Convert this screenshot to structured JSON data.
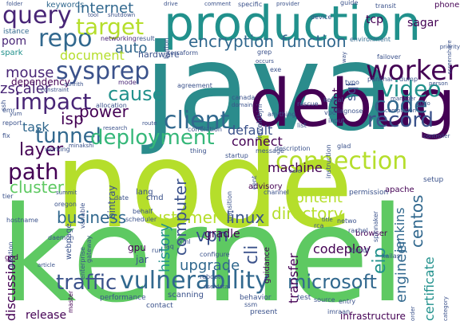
{
  "words": [
    {
      "text": "java",
      "color": "#2b8c8c"
    },
    {
      "text": "node",
      "color": "#b5de2b"
    },
    {
      "text": "kernel",
      "color": "#5ec962"
    },
    {
      "text": "debug",
      "color": "#440154"
    },
    {
      "text": "production",
      "color": "#21918c"
    },
    {
      "text": "vulnerability",
      "color": "#31688e"
    },
    {
      "text": "query",
      "color": "#482576"
    },
    {
      "text": "repo",
      "color": "#31688e"
    },
    {
      "text": "target",
      "color": "#b5de2b"
    },
    {
      "text": "sysprep",
      "color": "#3b528b"
    },
    {
      "text": "impact",
      "color": "#482576"
    },
    {
      "text": "tunnel",
      "color": "#31688e"
    },
    {
      "text": "path",
      "color": "#440154"
    },
    {
      "text": "layer",
      "color": "#440154"
    },
    {
      "text": "cluster",
      "color": "#5ec962"
    },
    {
      "text": "worker",
      "color": "#440154"
    },
    {
      "text": "video",
      "color": "#21918c"
    },
    {
      "text": "code",
      "color": "#31688e"
    },
    {
      "text": "record",
      "color": "#3b528b"
    },
    {
      "text": "connection",
      "color": "#b5de2b"
    },
    {
      "text": "deployment",
      "color": "#35b779"
    },
    {
      "text": "client",
      "color": "#31688e"
    },
    {
      "text": "cause",
      "color": "#21918c"
    },
    {
      "text": "power",
      "color": "#440154"
    },
    {
      "text": "traffic",
      "color": "#3b528b"
    },
    {
      "text": "microsoft",
      "color": "#31688e"
    },
    {
      "text": "customer",
      "color": "#b5de2b"
    },
    {
      "text": "business",
      "color": "#31688e"
    },
    {
      "text": "linux",
      "color": "#3b528b"
    },
    {
      "text": "directory",
      "color": "#b5de2b"
    },
    {
      "text": "function",
      "color": "#31688e"
    },
    {
      "text": "encryption",
      "color": "#31688e"
    },
    {
      "text": "internet",
      "color": "#31688e"
    },
    {
      "text": "auto",
      "color": "#31688e"
    },
    {
      "text": "mouse",
      "color": "#482576"
    },
    {
      "text": "zscaler",
      "color": "#482576"
    },
    {
      "text": "document",
      "color": "#b5de2b"
    },
    {
      "text": "dependency",
      "color": "#440154"
    },
    {
      "text": "task",
      "color": "#31688e"
    },
    {
      "text": "isp",
      "color": "#440154"
    },
    {
      "text": "content",
      "color": "#b5de2b"
    },
    {
      "text": "machine",
      "color": "#440154"
    },
    {
      "text": "default",
      "color": "#3b528b"
    },
    {
      "text": "connect",
      "color": "#440154"
    },
    {
      "text": "computer",
      "color": "#3b528b"
    },
    {
      "text": "history",
      "color": "#21918c"
    },
    {
      "text": "vpn",
      "color": "#3b528b"
    },
    {
      "text": "upgrade",
      "color": "#31688e"
    },
    {
      "text": "cli",
      "color": "#3b528b"
    },
    {
      "text": "transfer",
      "color": "#440154"
    },
    {
      "text": "codeploy",
      "color": "#440154"
    },
    {
      "text": "eip",
      "color": "#21918c"
    },
    {
      "text": "engineer",
      "color": "#31688e"
    },
    {
      "text": "centos",
      "color": "#31688e"
    },
    {
      "text": "jenkins",
      "color": "#31688e"
    },
    {
      "text": "certificate",
      "color": "#21918c"
    },
    {
      "text": "discussion",
      "color": "#440154"
    },
    {
      "text": "release",
      "color": "#440154"
    },
    {
      "text": "sql",
      "color": "#3b528b"
    },
    {
      "text": "dont",
      "color": "#440154"
    },
    {
      "text": "tcp",
      "color": "#440154"
    },
    {
      "text": "sagar",
      "color": "#440154"
    },
    {
      "text": "pom",
      "color": "#482576"
    },
    {
      "text": "spark",
      "color": "#21918c"
    },
    {
      "text": "hardware",
      "color": "#3b528b"
    },
    {
      "text": "keywords",
      "color": "#31688e"
    },
    {
      "text": "istance",
      "color": "#31688e"
    },
    {
      "text": "networking",
      "color": "#482576"
    },
    {
      "text": "result",
      "color": "#3b528b"
    },
    {
      "text": "terraform",
      "color": "#3b528b"
    },
    {
      "text": "environment",
      "color": "#31688e"
    },
    {
      "text": "phone",
      "color": "#440154"
    },
    {
      "text": "mode",
      "color": "#482576"
    },
    {
      "text": "allocation",
      "color": "#3b528b"
    },
    {
      "text": "gradle",
      "color": "#440154"
    },
    {
      "text": "gpu",
      "color": "#440154"
    },
    {
      "text": "jar",
      "color": "#3b528b"
    },
    {
      "text": "lang",
      "color": "#3b528b"
    },
    {
      "text": "cmd",
      "color": "#3b528b"
    },
    {
      "text": "webpage",
      "color": "#3b528b"
    },
    {
      "text": "bintray",
      "color": "#3b528b"
    },
    {
      "text": "guidance",
      "color": "#440154"
    },
    {
      "text": "browser",
      "color": "#440154"
    },
    {
      "text": "apache",
      "color": "#440154"
    },
    {
      "text": "permission",
      "color": "#3b528b"
    },
    {
      "text": "setup",
      "color": "#3b528b"
    },
    {
      "text": "infrastructure",
      "color": "#440154"
    },
    {
      "text": "kailas",
      "color": "#3b528b"
    },
    {
      "text": "master",
      "color": "#440154"
    },
    {
      "text": "performance",
      "color": "#3b528b"
    },
    {
      "text": "scanning",
      "color": "#3b528b"
    },
    {
      "text": "contact",
      "color": "#3b528b"
    },
    {
      "text": "present",
      "color": "#3b528b"
    },
    {
      "text": "behavior",
      "color": "#3b528b"
    },
    {
      "text": "test",
      "color": "#3b528b"
    },
    {
      "text": "imraan",
      "color": "#3b528b"
    },
    {
      "text": "god",
      "color": "#440154"
    },
    {
      "text": "hostname",
      "color": "#3b528b"
    },
    {
      "text": "oregon",
      "color": "#3b528b"
    },
    {
      "text": "daemon",
      "color": "#3b528b"
    },
    {
      "text": "summit",
      "color": "#3b528b"
    },
    {
      "text": "enterprise",
      "color": "#3b528b"
    },
    {
      "text": "run",
      "color": "#3b528b"
    },
    {
      "text": "faq",
      "color": "#3b528b"
    },
    {
      "text": "reboot",
      "color": "#3b528b"
    },
    {
      "text": "configure",
      "color": "#3b528b"
    },
    {
      "text": "xml",
      "color": "#3b528b"
    },
    {
      "text": "source",
      "color": "#3b528b"
    },
    {
      "text": "entry",
      "color": "#3b528b"
    },
    {
      "text": "bundl",
      "color": "#3b528b"
    },
    {
      "text": "netwo",
      "color": "#3b528b"
    },
    {
      "text": "spinnaker",
      "color": "#3b528b"
    },
    {
      "text": "rca",
      "color": "#3b528b"
    },
    {
      "text": "rachel",
      "color": "#3b528b"
    },
    {
      "text": "advisory",
      "color": "#440154"
    },
    {
      "text": "channel",
      "color": "#3b528b"
    },
    {
      "text": "transition",
      "color": "#3b528b"
    },
    {
      "text": "behalf",
      "color": "#3b528b"
    },
    {
      "text": "date",
      "color": "#3b528b"
    },
    {
      "text": "variable",
      "color": "#3b528b"
    },
    {
      "text": "gateway",
      "color": "#3b528b"
    },
    {
      "text": "scheduler",
      "color": "#3b528b"
    },
    {
      "text": "startup",
      "color": "#3b528b"
    },
    {
      "text": "message",
      "color": "#3b528b"
    },
    {
      "text": "description",
      "color": "#3b528b"
    },
    {
      "text": "thing",
      "color": "#3b528b"
    },
    {
      "text": "correlation",
      "color": "#3b528b"
    },
    {
      "text": "research",
      "color": "#3b528b"
    },
    {
      "text": "working",
      "color": "#3b528b"
    },
    {
      "text": "minakshi",
      "color": "#3b528b"
    },
    {
      "text": "report",
      "color": "#3b528b"
    },
    {
      "text": "yum",
      "color": "#3b528b"
    },
    {
      "text": "emr",
      "color": "#3b528b"
    },
    {
      "text": "ssh",
      "color": "#3b528b"
    },
    {
      "text": "fix",
      "color": "#3b528b"
    },
    {
      "text": "tier",
      "color": "#3b528b"
    },
    {
      "text": "ashrith",
      "color": "#3b528b"
    },
    {
      "text": "constraint",
      "color": "#3b528b"
    },
    {
      "text": "agreement",
      "color": "#3b528b"
    },
    {
      "text": "canada",
      "color": "#3b528b"
    },
    {
      "text": "domain",
      "color": "#3b528b"
    },
    {
      "text": "rescue",
      "color": "#3b528b"
    },
    {
      "text": "list",
      "color": "#3b528b"
    },
    {
      "text": "input",
      "color": "#3b528b"
    },
    {
      "text": "anything",
      "color": "#3b528b"
    },
    {
      "text": "exe",
      "color": "#3b528b"
    },
    {
      "text": "grep",
      "color": "#3b528b"
    },
    {
      "text": "occurs",
      "color": "#3b528b"
    },
    {
      "text": "vpc",
      "color": "#3b528b"
    },
    {
      "text": "diagnose",
      "color": "#3b528b"
    },
    {
      "text": "typo",
      "color": "#3b528b"
    },
    {
      "text": "panchal",
      "color": "#3b528b"
    },
    {
      "text": "dump",
      "color": "#3b528b"
    },
    {
      "text": "manager",
      "color": "#3b528b"
    },
    {
      "text": "sudo",
      "color": "#3b528b"
    },
    {
      "text": "completion",
      "color": "#3b528b"
    },
    {
      "text": "failover",
      "color": "#3b528b"
    },
    {
      "text": "folder",
      "color": "#3b528b"
    },
    {
      "text": "tool",
      "color": "#3b528b"
    },
    {
      "text": "shutdown",
      "color": "#3b528b"
    },
    {
      "text": "drive",
      "color": "#3b528b"
    },
    {
      "text": "comment",
      "color": "#3b528b"
    },
    {
      "text": "specific",
      "color": "#3b528b"
    },
    {
      "text": "provider",
      "color": "#3b528b"
    },
    {
      "text": "device",
      "color": "#3b528b"
    },
    {
      "text": "guide",
      "color": "#3b528b"
    },
    {
      "text": "transit",
      "color": "#3b528b"
    },
    {
      "text": "button",
      "color": "#3b528b"
    },
    {
      "text": "route",
      "color": "#3b528b"
    },
    {
      "text": "kernal",
      "color": "#3b528b"
    },
    {
      "text": "person",
      "color": "#3b528b"
    },
    {
      "text": "leveldbjni",
      "color": "#3b528b"
    },
    {
      "text": "instruction",
      "color": "#3b528b"
    },
    {
      "text": "glad",
      "color": "#3b528b"
    },
    {
      "text": "care",
      "color": "#3b528b"
    },
    {
      "text": "cent",
      "color": "#3b528b"
    },
    {
      "text": "question",
      "color": "#3b528b"
    },
    {
      "text": "article",
      "color": "#3b528b"
    },
    {
      "text": "category",
      "color": "#3b528b"
    },
    {
      "text": "order",
      "color": "#3b528b"
    },
    {
      "text": "screenshare",
      "color": "#3b528b"
    },
    {
      "text": "controller",
      "color": "#3b528b"
    },
    {
      "text": "title",
      "color": "#3b528b"
    },
    {
      "text": "priority",
      "color": "#3b528b"
    },
    {
      "text": "ssm",
      "color": "#3b528b"
    },
    {
      "text": "way",
      "color": "#3b528b"
    },
    {
      "text": "userdata",
      "color": "#3b528b"
    }
  ]
}
